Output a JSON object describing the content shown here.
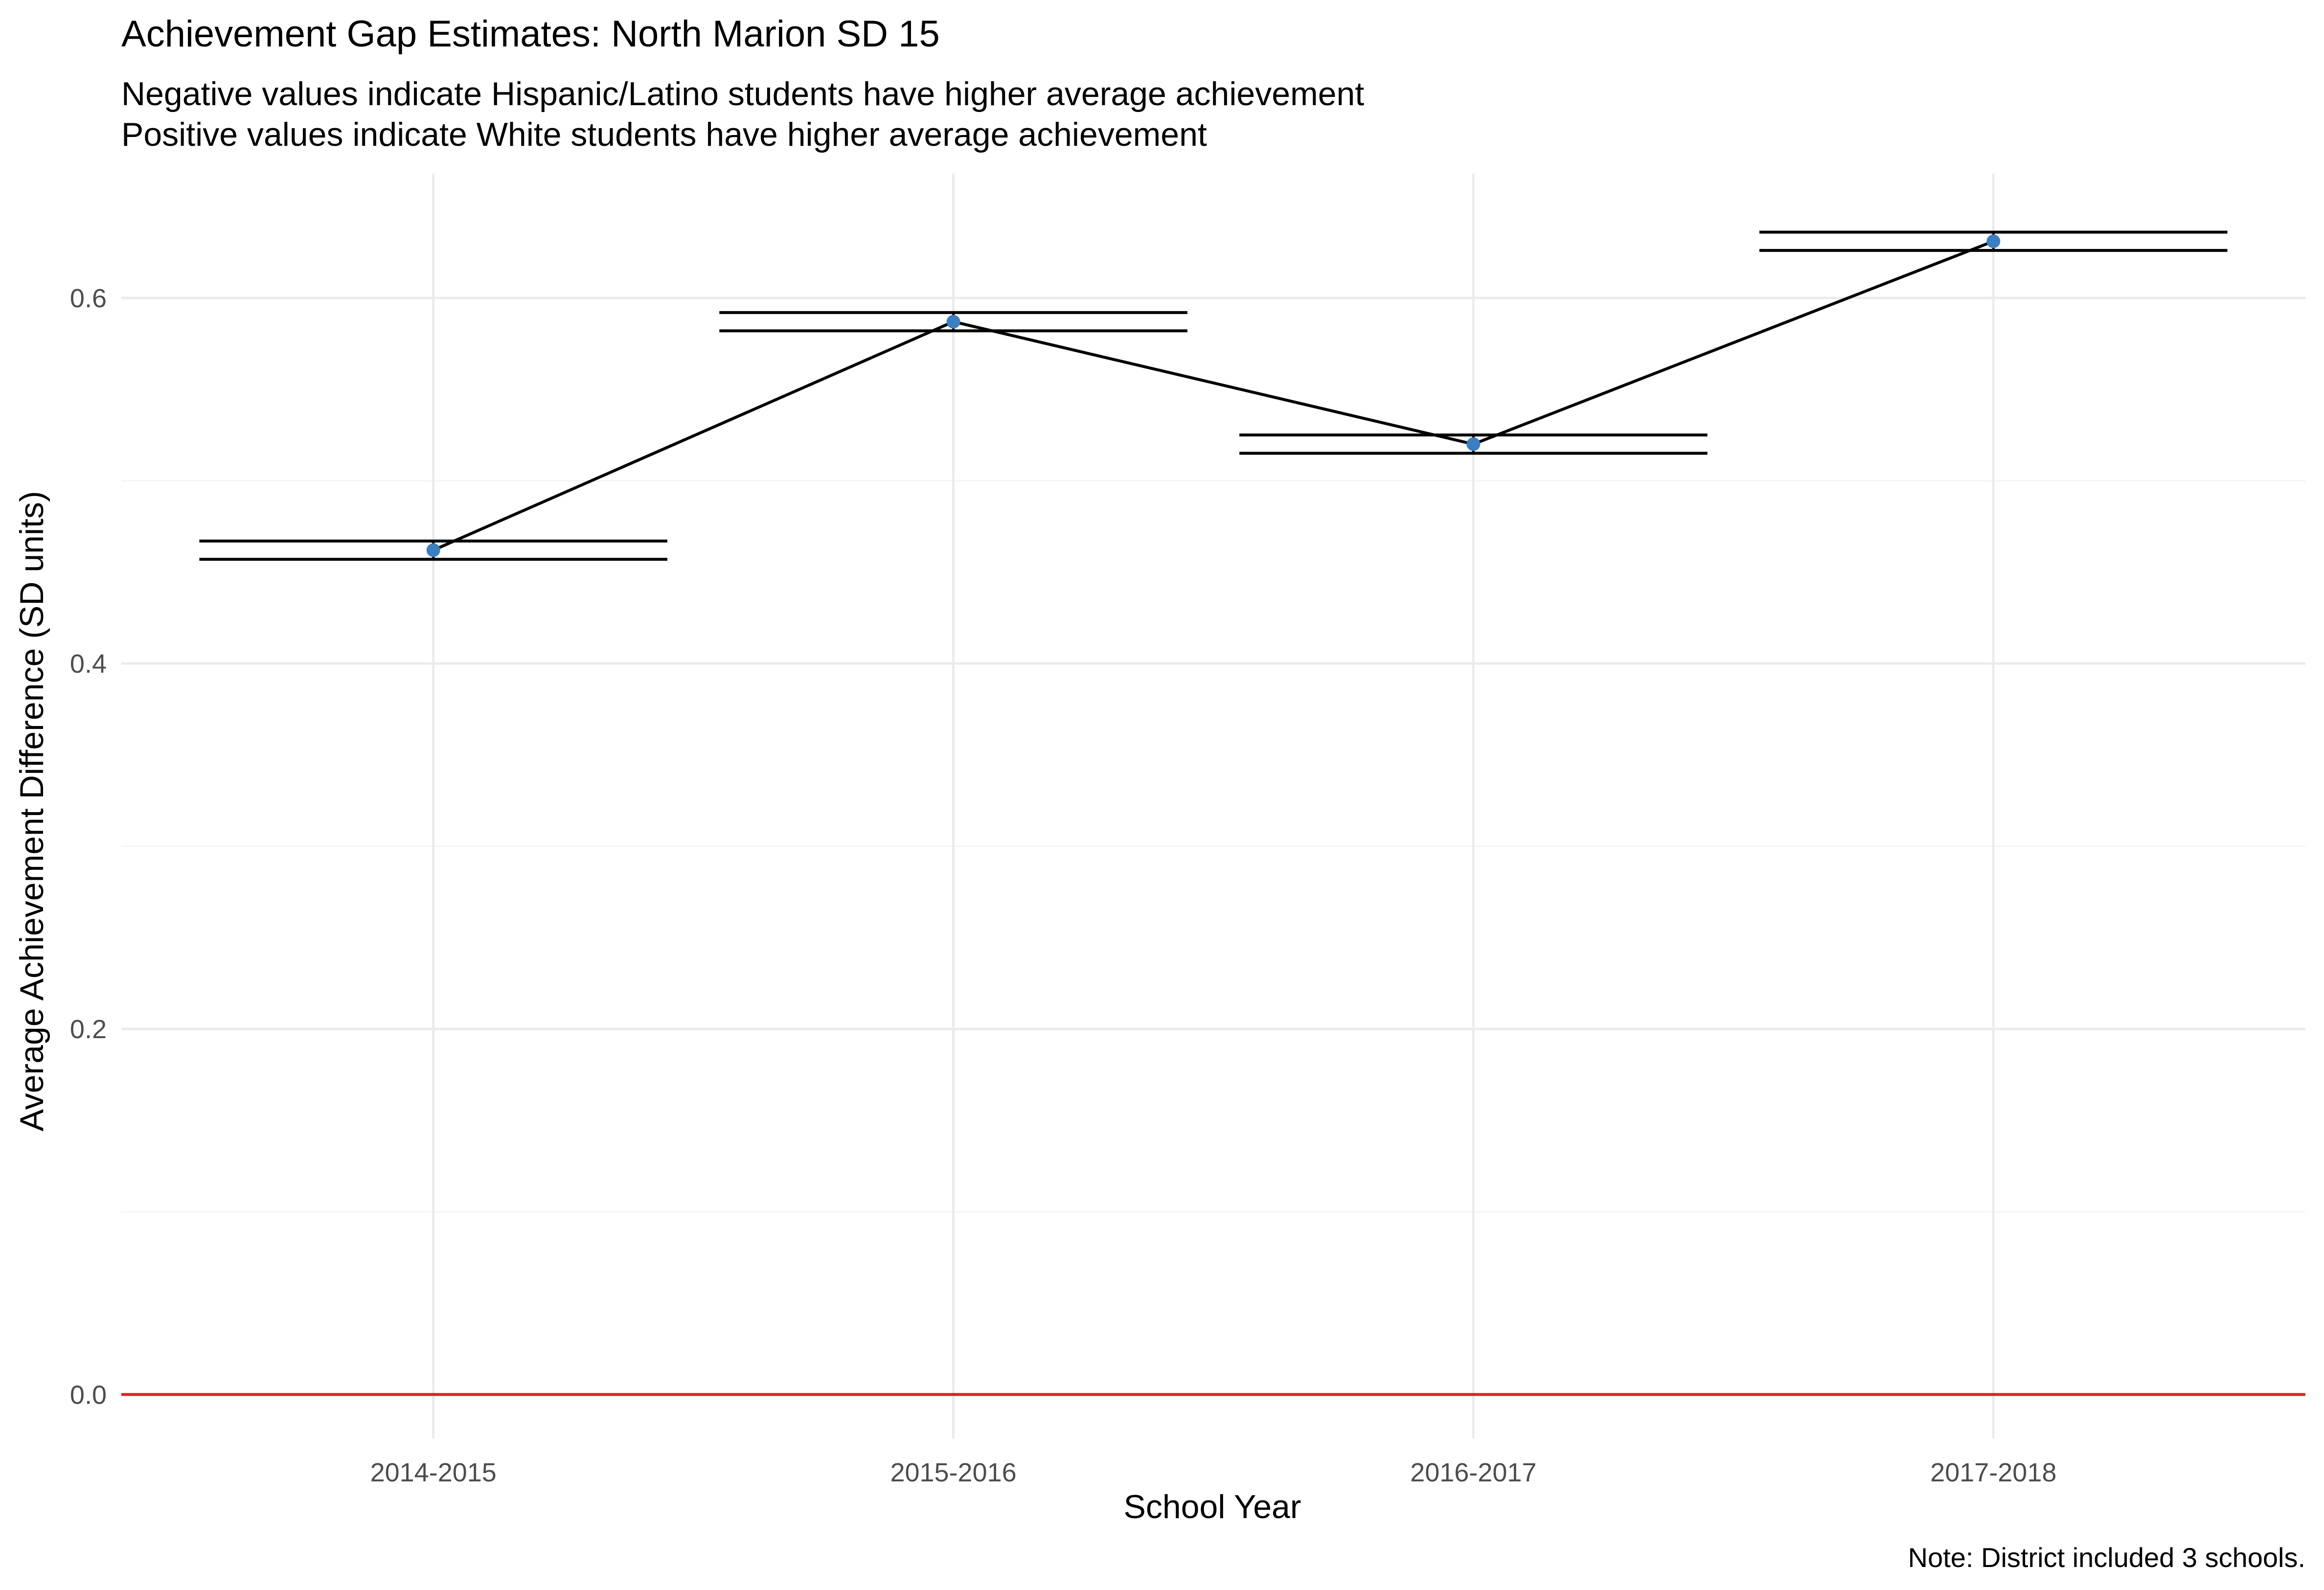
{
  "chart_data": {
    "type": "line",
    "title": "Achievement Gap Estimates: North Marion SD 15",
    "subtitle_lines": [
      "Negative values indicate Hispanic/Latino students have higher average achievement",
      "Positive values indicate White students have higher average achievement"
    ],
    "xlabel": "School Year",
    "ylabel": "Average Achievement Difference (SD units)",
    "caption": "Note: District included 3 schools.",
    "categories": [
      "2014-2015",
      "2015-2016",
      "2016-2017",
      "2017-2018"
    ],
    "values": [
      0.462,
      0.587,
      0.52,
      0.631
    ],
    "error_lower": [
      0.457,
      0.582,
      0.515,
      0.626
    ],
    "error_upper": [
      0.467,
      0.592,
      0.525,
      0.636
    ],
    "ylim": [
      -0.024,
      0.668
    ],
    "yticks": [
      0.0,
      0.2,
      0.4,
      0.6
    ],
    "ytick_labels": [
      "0.0",
      "0.2",
      "0.4",
      "0.6"
    ],
    "reference_line": 0.0,
    "grid": true,
    "legend": "none",
    "colors": {
      "point": "#3a7fc1",
      "line": "#000000",
      "errorbar": "#000000",
      "reference": "#d62728",
      "grid_major": "#ebebeb",
      "grid_minor": "#f5f5f5"
    }
  }
}
